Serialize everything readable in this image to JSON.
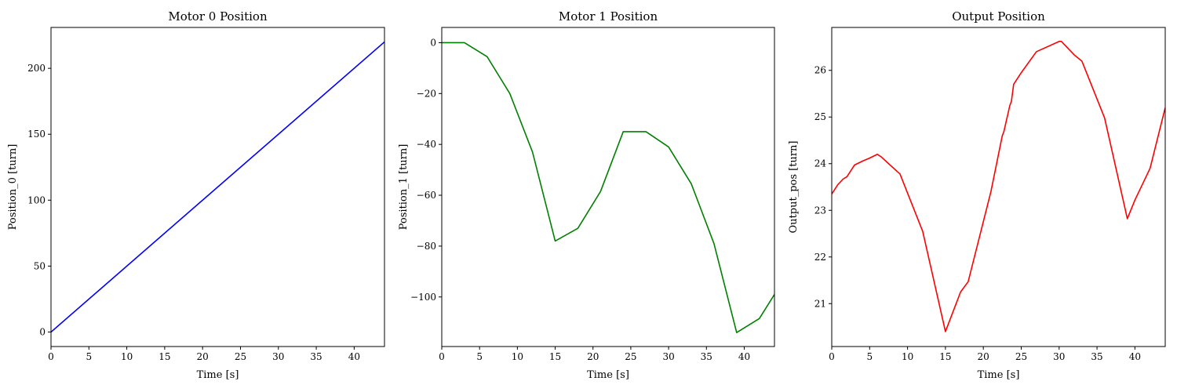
{
  "chart_data": [
    {
      "type": "line",
      "title": "Motor 0 Position",
      "xlabel": "Time [s]",
      "ylabel": "Position_0 [turn]",
      "xlim": [
        0,
        44
      ],
      "ylim": [
        -11,
        231
      ],
      "xticks": [
        0,
        5,
        10,
        15,
        20,
        25,
        30,
        35,
        40
      ],
      "yticks": [
        0,
        50,
        100,
        150,
        200
      ],
      "grid": false,
      "series": [
        {
          "color": "#0000ff",
          "x": [
            0,
            44
          ],
          "y": [
            0,
            220
          ]
        }
      ]
    },
    {
      "type": "line",
      "title": "Motor 1 Position",
      "xlabel": "Time [s]",
      "ylabel": "Position_1 [turn]",
      "xlim": [
        0,
        44
      ],
      "ylim": [
        -119.5,
        6
      ],
      "xticks": [
        0,
        5,
        10,
        15,
        20,
        25,
        30,
        35,
        40
      ],
      "yticks": [
        0,
        -20,
        -40,
        -60,
        -80,
        -100
      ],
      "grid": false,
      "series": [
        {
          "color": "#008000",
          "x": [
            0,
            3,
            6,
            9,
            12,
            15,
            18,
            21,
            24,
            27,
            30,
            33,
            36,
            39,
            42,
            44
          ],
          "y": [
            0,
            0,
            -5.5,
            -20,
            -43,
            -78,
            -73,
            -58.5,
            -35,
            -35,
            -41,
            -55.5,
            -79,
            -114,
            -108.5,
            -99
          ]
        }
      ]
    },
    {
      "type": "line",
      "title": "Output Position",
      "xlabel": "Time [s]",
      "ylabel": "Output_pos [turn]",
      "xlim": [
        0,
        44
      ],
      "ylim": [
        20.08,
        26.92
      ],
      "xticks": [
        0,
        5,
        10,
        15,
        20,
        25,
        30,
        35,
        40
      ],
      "yticks": [
        21,
        22,
        23,
        24,
        25,
        26
      ],
      "grid": false,
      "series": [
        {
          "color": "#ff0000",
          "x": [
            0,
            0.8,
            1.5,
            2,
            3,
            4,
            5,
            6,
            6.5,
            7.5,
            9,
            12,
            15,
            17,
            18,
            21,
            22.5,
            22.7,
            23.5,
            23.7,
            24,
            25,
            27,
            30,
            30.3,
            32,
            33,
            36,
            39,
            40,
            42,
            44
          ],
          "y": [
            23.35,
            23.55,
            23.67,
            23.72,
            23.97,
            24.05,
            24.12,
            24.2,
            24.15,
            24.0,
            23.78,
            22.55,
            20.4,
            21.25,
            21.47,
            23.4,
            24.6,
            24.68,
            25.25,
            25.33,
            25.7,
            25.95,
            26.4,
            26.62,
            26.62,
            26.33,
            26.2,
            24.98,
            22.82,
            23.22,
            23.9,
            25.2
          ]
        }
      ]
    }
  ]
}
